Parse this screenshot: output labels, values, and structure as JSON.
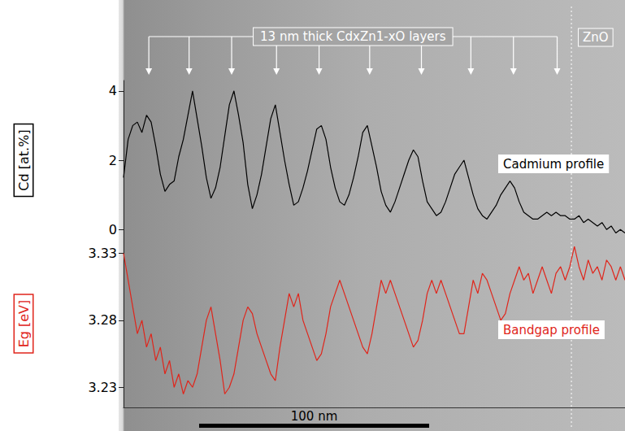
{
  "chart_data": {
    "type": "line",
    "x": [
      0,
      2,
      4,
      6,
      8,
      10,
      12,
      14,
      16,
      18,
      20,
      22,
      24,
      26,
      28,
      30,
      32,
      34,
      36,
      38,
      40,
      42,
      44,
      46,
      48,
      50,
      52,
      54,
      56,
      58,
      60,
      62,
      64,
      66,
      68,
      70,
      72,
      74,
      76,
      78,
      80,
      82,
      84,
      86,
      88,
      90,
      92,
      94,
      96,
      98,
      100,
      102,
      104,
      106,
      108,
      110,
      112,
      114,
      116,
      118,
      120,
      122,
      124,
      126,
      128,
      130,
      132,
      134,
      136,
      138,
      140,
      142,
      144,
      146,
      148,
      150,
      152,
      154,
      156,
      158,
      160,
      162,
      164,
      166,
      168,
      170,
      172,
      174,
      176,
      178,
      180,
      182,
      184,
      186,
      188,
      190,
      192,
      194,
      196,
      198,
      200,
      202,
      204,
      206,
      208,
      210,
      212,
      214,
      216,
      218
    ],
    "xlim": [
      0,
      218
    ],
    "ylabel": "Cd [at.%]",
    "ylim": [
      -0.3,
      4.3
    ],
    "yticks": [
      0,
      2,
      4
    ],
    "y2label": "Eg [eV]",
    "y2lim": [
      3.215,
      3.34
    ],
    "y2ticks": [
      3.23,
      3.28,
      3.33
    ],
    "grid": false,
    "tick_labels": "y",
    "marker": "none",
    "series": [
      {
        "name": "Cadmium profile",
        "color": "#000000",
        "axis": "y",
        "values": [
          1.5,
          2.6,
          3.0,
          3.1,
          2.8,
          3.3,
          3.1,
          2.4,
          1.6,
          1.1,
          1.3,
          1.4,
          2.1,
          2.6,
          3.3,
          4.0,
          3.2,
          2.4,
          1.5,
          0.9,
          1.2,
          1.8,
          2.7,
          3.6,
          4.0,
          3.3,
          2.5,
          1.3,
          0.6,
          1.0,
          1.6,
          2.4,
          3.2,
          3.6,
          2.8,
          2.0,
          1.3,
          0.7,
          0.8,
          1.2,
          1.7,
          2.3,
          2.9,
          3.0,
          2.6,
          1.8,
          1.2,
          0.8,
          0.7,
          1.0,
          1.5,
          2.1,
          2.8,
          3.0,
          2.4,
          1.8,
          1.1,
          0.7,
          0.5,
          0.8,
          1.2,
          1.6,
          2.0,
          2.3,
          2.1,
          1.4,
          0.8,
          0.6,
          0.4,
          0.5,
          0.8,
          1.2,
          1.6,
          1.8,
          2.0,
          1.5,
          1.0,
          0.6,
          0.4,
          0.3,
          0.5,
          0.7,
          1.0,
          1.2,
          1.4,
          1.2,
          0.8,
          0.5,
          0.4,
          0.3,
          0.3,
          0.4,
          0.5,
          0.4,
          0.5,
          0.4,
          0.4,
          0.3,
          0.3,
          0.4,
          0.2,
          0.3,
          0.2,
          0.1,
          0.2,
          0.0,
          0.1,
          -0.1,
          0.0,
          -0.1
        ]
      },
      {
        "name": "Bandgap profile",
        "color": "#e0251b",
        "axis": "y2",
        "values": [
          3.33,
          3.31,
          3.29,
          3.27,
          3.28,
          3.26,
          3.27,
          3.25,
          3.26,
          3.24,
          3.25,
          3.23,
          3.24,
          3.225,
          3.235,
          3.23,
          3.24,
          3.26,
          3.28,
          3.29,
          3.27,
          3.25,
          3.225,
          3.23,
          3.24,
          3.26,
          3.28,
          3.29,
          3.285,
          3.27,
          3.26,
          3.25,
          3.24,
          3.235,
          3.26,
          3.28,
          3.3,
          3.29,
          3.3,
          3.28,
          3.27,
          3.26,
          3.25,
          3.255,
          3.27,
          3.29,
          3.3,
          3.31,
          3.3,
          3.29,
          3.28,
          3.27,
          3.26,
          3.255,
          3.27,
          3.29,
          3.31,
          3.3,
          3.31,
          3.3,
          3.29,
          3.28,
          3.27,
          3.26,
          3.265,
          3.28,
          3.3,
          3.31,
          3.3,
          3.31,
          3.3,
          3.29,
          3.28,
          3.27,
          3.27,
          3.29,
          3.31,
          3.3,
          3.315,
          3.31,
          3.3,
          3.29,
          3.28,
          3.285,
          3.3,
          3.31,
          3.32,
          3.31,
          3.315,
          3.3,
          3.31,
          3.32,
          3.31,
          3.3,
          3.315,
          3.32,
          3.31,
          3.32,
          3.335,
          3.32,
          3.31,
          3.325,
          3.315,
          3.32,
          3.31,
          3.325,
          3.32,
          3.31,
          3.32,
          3.31
        ]
      }
    ],
    "annotations": {
      "layers": {
        "label": "13 nm thick CdxZn1-xO layers",
        "x": [
          11,
          28.5,
          47,
          66.5,
          85,
          107,
          129.5,
          151,
          169.5,
          188.5
        ]
      },
      "interface": {
        "label": "ZnO",
        "x": 194.7
      },
      "scale_bar": {
        "label": "100 nm",
        "length": 100
      }
    }
  }
}
